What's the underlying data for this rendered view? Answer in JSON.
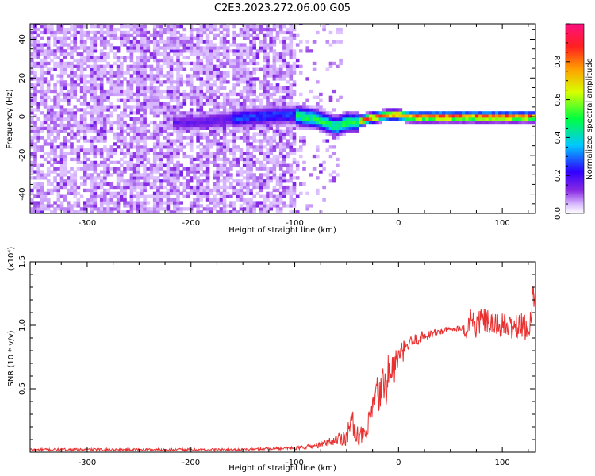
{
  "figure": {
    "title": "C2E3.2023.272.06.00.G05"
  },
  "chart_data": [
    {
      "type": "heatmap",
      "xlabel": "Height of straight line (km)",
      "ylabel": "Frequency (Hz)",
      "xlim": [
        -355,
        132
      ],
      "ylim": [
        -50,
        48
      ],
      "xticks": [
        -300,
        -200,
        -100,
        0,
        100
      ],
      "xtick_labels": [
        "-300",
        "-200",
        "-100",
        "0",
        "100"
      ],
      "yticks": [
        -40,
        -20,
        0,
        20,
        40
      ],
      "ytick_labels": [
        "-40",
        "-20",
        "0",
        "20",
        "40"
      ],
      "grid": false,
      "colorbar": {
        "label": "Normalized spectral amplitude",
        "range": [
          0,
          1
        ],
        "ticks": [
          "0.0",
          "0.2",
          "0.4",
          "0.6",
          "0.8"
        ],
        "tick_values": [
          0.0,
          0.2,
          0.4,
          0.6,
          0.8
        ],
        "colormap": "rainbow (white, violet, blue, cyan, green, yellow, orange, red, magenta)"
      },
      "ridge_frequency_hz": {
        "x": [
          -220,
          -200,
          -180,
          -160,
          -140,
          -120,
          -100,
          -90,
          -80,
          -70,
          -60,
          -50,
          -40,
          -30,
          -20,
          -10,
          0,
          10,
          20,
          40,
          60,
          80,
          100,
          120,
          132
        ],
        "y": [
          -3,
          -3,
          -2,
          -1,
          0,
          1,
          1,
          0,
          -1,
          -3,
          -5,
          -3,
          -3,
          -1,
          0,
          1,
          1,
          0,
          0,
          0,
          0,
          0,
          0,
          0,
          0
        ]
      }
    },
    {
      "type": "line",
      "xlabel": "Height of straight line (km)",
      "ylabel": "SNR (10 * v/v)",
      "yscale_label": "(x10⁴)",
      "xlim": [
        -355,
        132
      ],
      "ylim": [
        0,
        1.5
      ],
      "xticks": [
        -300,
        -200,
        -100,
        0,
        100
      ],
      "xtick_labels": [
        "-300",
        "-200",
        "-100",
        "0",
        "100"
      ],
      "yticks": [
        0.5,
        1.0,
        1.5
      ],
      "ytick_labels": [
        "0.5",
        "1.0",
        "1.5"
      ],
      "grid": false,
      "series": [
        {
          "color": "#e83030",
          "x": [
            -355,
            -300,
            -250,
            -200,
            -150,
            -120,
            -100,
            -80,
            -70,
            -60,
            -50,
            -45,
            -40,
            -35,
            -30,
            -25,
            -20,
            -15,
            -10,
            -5,
            0,
            10,
            20,
            30,
            40,
            50,
            60,
            65,
            70,
            75,
            80,
            90,
            100,
            110,
            120,
            125,
            130,
            132
          ],
          "y": [
            0.02,
            0.02,
            0.02,
            0.02,
            0.02,
            0.03,
            0.03,
            0.05,
            0.07,
            0.1,
            0.13,
            0.25,
            0.14,
            0.12,
            0.15,
            0.35,
            0.45,
            0.5,
            0.6,
            0.65,
            0.75,
            0.85,
            0.9,
            0.93,
            0.95,
            0.97,
            0.98,
            0.95,
            1.05,
            1.0,
            1.05,
            1.0,
            1.0,
            0.98,
            1.0,
            0.95,
            1.25,
            1.3
          ],
          "amp": [
            0.01,
            0.01,
            0.01,
            0.01,
            0.01,
            0.01,
            0.015,
            0.02,
            0.03,
            0.05,
            0.08,
            0.1,
            0.08,
            0.08,
            0.1,
            0.15,
            0.18,
            0.2,
            0.2,
            0.15,
            0.1,
            0.06,
            0.05,
            0.04,
            0.03,
            0.02,
            0.02,
            0.06,
            0.14,
            0.12,
            0.1,
            0.1,
            0.1,
            0.1,
            0.1,
            0.1,
            0.15,
            0.15
          ]
        }
      ]
    }
  ]
}
